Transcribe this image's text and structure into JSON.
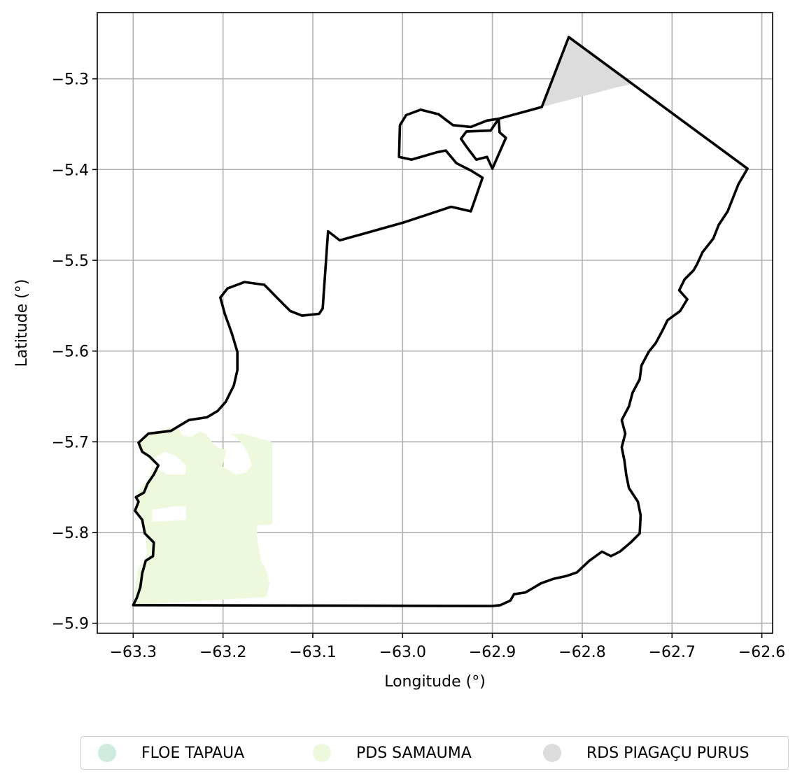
{
  "chart_data": {
    "type": "map",
    "xlabel": "Longitude (°)",
    "ylabel": "Latitude (°)",
    "xlim": [
      -63.34,
      -62.588
    ],
    "ylim": [
      -5.911,
      -5.227
    ],
    "xticks": [
      -63.3,
      -63.2,
      -63.1,
      -63.0,
      -62.9,
      -62.8,
      -62.7,
      -62.6
    ],
    "xtick_labels": [
      "−63.3",
      "−63.2",
      "−63.1",
      "−63.0",
      "−62.9",
      "−62.8",
      "−62.7",
      "−62.6"
    ],
    "yticks": [
      -5.3,
      -5.4,
      -5.5,
      -5.6,
      -5.7,
      -5.8,
      -5.9
    ],
    "ytick_labels": [
      "−5.3",
      "−5.4",
      "−5.5",
      "−5.6",
      "−5.7",
      "−5.8",
      "−5.9"
    ],
    "grid": true,
    "legend_position": "below",
    "boundary_outline": [
      [
        -62.815,
        -5.254
      ],
      [
        -62.616,
        -5.399
      ],
      [
        -62.626,
        -5.416
      ],
      [
        -62.632,
        -5.431
      ],
      [
        -62.638,
        -5.446
      ],
      [
        -62.648,
        -5.461
      ],
      [
        -62.654,
        -5.476
      ],
      [
        -62.666,
        -5.491
      ],
      [
        -62.672,
        -5.504
      ],
      [
        -62.676,
        -5.511
      ],
      [
        -62.686,
        -5.521
      ],
      [
        -62.692,
        -5.533
      ],
      [
        -62.683,
        -5.543
      ],
      [
        -62.691,
        -5.556
      ],
      [
        -62.705,
        -5.566
      ],
      [
        -62.711,
        -5.578
      ],
      [
        -62.718,
        -5.591
      ],
      [
        -62.726,
        -5.601
      ],
      [
        -62.734,
        -5.616
      ],
      [
        -62.736,
        -5.631
      ],
      [
        -62.744,
        -5.646
      ],
      [
        -62.748,
        -5.661
      ],
      [
        -62.756,
        -5.676
      ],
      [
        -62.752,
        -5.691
      ],
      [
        -62.756,
        -5.706
      ],
      [
        -62.753,
        -5.721
      ],
      [
        -62.751,
        -5.736
      ],
      [
        -62.748,
        -5.751
      ],
      [
        -62.738,
        -5.766
      ],
      [
        -62.735,
        -5.781
      ],
      [
        -62.736,
        -5.801
      ],
      [
        -62.746,
        -5.811
      ],
      [
        -62.758,
        -5.821
      ],
      [
        -62.768,
        -5.826
      ],
      [
        -62.778,
        -5.821
      ],
      [
        -62.792,
        -5.831
      ],
      [
        -62.806,
        -5.844
      ],
      [
        -62.818,
        -5.848
      ],
      [
        -62.832,
        -5.851
      ],
      [
        -62.846,
        -5.856
      ],
      [
        -62.863,
        -5.866
      ],
      [
        -62.876,
        -5.868
      ],
      [
        -62.88,
        -5.875
      ],
      [
        -62.891,
        -5.88
      ],
      [
        -62.9,
        -5.881
      ],
      [
        -63.3,
        -5.88
      ],
      [
        -63.296,
        -5.872
      ],
      [
        -63.292,
        -5.86
      ],
      [
        -63.29,
        -5.845
      ],
      [
        -63.286,
        -5.831
      ],
      [
        -63.278,
        -5.826
      ],
      [
        -63.277,
        -5.811
      ],
      [
        -63.287,
        -5.801
      ],
      [
        -63.29,
        -5.786
      ],
      [
        -63.298,
        -5.776
      ],
      [
        -63.294,
        -5.766
      ],
      [
        -63.297,
        -5.761
      ],
      [
        -63.288,
        -5.756
      ],
      [
        -63.284,
        -5.746
      ],
      [
        -63.277,
        -5.736
      ],
      [
        -63.272,
        -5.726
      ],
      [
        -63.282,
        -5.716
      ],
      [
        -63.29,
        -5.711
      ],
      [
        -63.294,
        -5.701
      ],
      [
        -63.283,
        -5.691
      ],
      [
        -63.258,
        -5.688
      ],
      [
        -63.238,
        -5.676
      ],
      [
        -63.218,
        -5.673
      ],
      [
        -63.206,
        -5.666
      ],
      [
        -63.197,
        -5.656
      ],
      [
        -63.188,
        -5.638
      ],
      [
        -63.184,
        -5.621
      ],
      [
        -63.184,
        -5.601
      ],
      [
        -63.19,
        -5.581
      ],
      [
        -63.198,
        -5.559
      ],
      [
        -63.203,
        -5.541
      ],
      [
        -63.195,
        -5.531
      ],
      [
        -63.176,
        -5.524
      ],
      [
        -63.154,
        -5.527
      ],
      [
        -63.14,
        -5.541
      ],
      [
        -63.125,
        -5.556
      ],
      [
        -63.112,
        -5.561
      ],
      [
        -63.093,
        -5.559
      ],
      [
        -63.089,
        -5.553
      ],
      [
        -63.083,
        -5.468
      ],
      [
        -63.07,
        -5.478
      ],
      [
        -62.998,
        -5.458
      ],
      [
        -62.946,
        -5.441
      ],
      [
        -62.924,
        -5.446
      ],
      [
        -62.911,
        -5.409
      ],
      [
        -62.924,
        -5.401
      ],
      [
        -62.94,
        -5.393
      ],
      [
        -62.952,
        -5.379
      ],
      [
        -62.962,
        -5.381
      ],
      [
        -62.99,
        -5.389
      ],
      [
        -63.004,
        -5.386
      ],
      [
        -63.003,
        -5.351
      ],
      [
        -62.996,
        -5.34
      ],
      [
        -62.98,
        -5.334
      ],
      [
        -62.96,
        -5.339
      ],
      [
        -62.944,
        -5.351
      ],
      [
        -62.924,
        -5.353
      ],
      [
        -62.906,
        -5.346
      ],
      [
        -62.893,
        -5.344
      ],
      [
        -62.892,
        -5.359
      ],
      [
        -62.885,
        -5.365
      ],
      [
        -62.9,
        -5.399
      ],
      [
        -62.906,
        -5.386
      ],
      [
        -62.918,
        -5.389
      ],
      [
        -62.928,
        -5.376
      ],
      [
        -62.935,
        -5.366
      ],
      [
        -62.929,
        -5.358
      ],
      [
        -62.902,
        -5.357
      ],
      [
        -62.893,
        -5.344
      ],
      [
        -62.845,
        -5.331
      ],
      [
        -62.815,
        -5.254
      ]
    ],
    "areas": [
      {
        "name": "PDS SAMAUMA",
        "color": "#eef8dc",
        "polygon": [
          [
            -63.285,
            -5.691
          ],
          [
            -63.258,
            -5.684
          ],
          [
            -63.249,
            -5.686
          ],
          [
            -63.245,
            -5.693
          ],
          [
            -63.236,
            -5.695
          ],
          [
            -63.226,
            -5.689
          ],
          [
            -63.219,
            -5.691
          ],
          [
            -63.212,
            -5.701
          ],
          [
            -63.206,
            -5.706
          ],
          [
            -63.196,
            -5.709
          ],
          [
            -63.201,
            -5.727
          ],
          [
            -63.186,
            -5.736
          ],
          [
            -63.174,
            -5.734
          ],
          [
            -63.168,
            -5.726
          ],
          [
            -63.171,
            -5.716
          ],
          [
            -63.176,
            -5.706
          ],
          [
            -63.184,
            -5.696
          ],
          [
            -63.192,
            -5.691
          ],
          [
            -63.178,
            -5.691
          ],
          [
            -63.168,
            -5.694
          ],
          [
            -63.148,
            -5.699
          ],
          [
            -63.145,
            -5.701
          ],
          [
            -63.145,
            -5.791
          ],
          [
            -63.162,
            -5.792
          ],
          [
            -63.162,
            -5.806
          ],
          [
            -63.158,
            -5.831
          ],
          [
            -63.152,
            -5.841
          ],
          [
            -63.148,
            -5.856
          ],
          [
            -63.152,
            -5.871
          ],
          [
            -63.3,
            -5.88
          ],
          [
            -63.295,
            -5.841
          ],
          [
            -63.285,
            -5.825
          ],
          [
            -63.286,
            -5.799
          ],
          [
            -63.291,
            -5.79
          ],
          [
            -63.297,
            -5.775
          ],
          [
            -63.295,
            -5.755
          ],
          [
            -63.283,
            -5.741
          ],
          [
            -63.278,
            -5.726
          ],
          [
            -63.288,
            -5.711
          ],
          [
            -63.295,
            -5.701
          ]
        ],
        "holes": [
          [
            [
              -63.264,
              -5.711
            ],
            [
              -63.274,
              -5.716
            ],
            [
              -63.279,
              -5.726
            ],
            [
              -63.271,
              -5.731
            ],
            [
              -63.262,
              -5.736
            ],
            [
              -63.242,
              -5.736
            ],
            [
              -63.241,
              -5.726
            ],
            [
              -63.252,
              -5.716
            ]
          ],
          [
            [
              -63.254,
              -5.771
            ],
            [
              -63.241,
              -5.771
            ],
            [
              -63.241,
              -5.786
            ],
            [
              -63.279,
              -5.788
            ],
            [
              -63.279,
              -5.775
            ]
          ]
        ]
      },
      {
        "name": "RDS PIAGAÇU PURUS",
        "color": "#dcdcdc",
        "polygon": [
          [
            -62.815,
            -5.254
          ],
          [
            -62.745,
            -5.306
          ],
          [
            -62.76,
            -5.309
          ],
          [
            -62.845,
            -5.331
          ]
        ],
        "holes": []
      }
    ],
    "legend": [
      {
        "name": "FLOE TAPAUA",
        "color": "#cdebdf"
      },
      {
        "name": "PDS SAMAUMA",
        "color": "#eef8dc"
      },
      {
        "name": "RDS PIAGAÇU PURUS",
        "color": "#dcdcdc"
      }
    ]
  }
}
